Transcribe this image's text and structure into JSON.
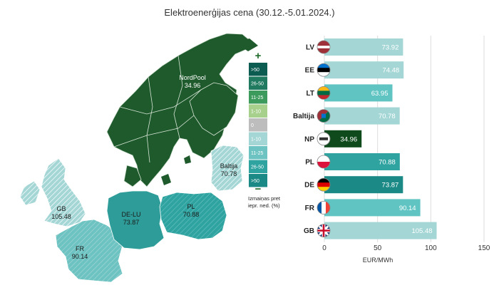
{
  "title": "Elektroenerģijas cena (30.12.-5.01.2024.)",
  "map": {
    "regions": [
      {
        "code": "NordPool",
        "label": "NordPool",
        "value": "34.96"
      },
      {
        "code": "Baltija",
        "label": "Baltija",
        "value": "70.78"
      },
      {
        "code": "GB",
        "label": "GB",
        "value": "105.48"
      },
      {
        "code": "DE-LU",
        "label": "DE-LU",
        "value": "73.87"
      },
      {
        "code": "PL",
        "label": "PL",
        "value": "70.88"
      },
      {
        "code": "FR",
        "label": "FR",
        "value": "90.14"
      }
    ],
    "legend": {
      "plus_symbol": "+",
      "minus_symbol": "−",
      "items": [
        {
          "label": ">50",
          "color": "#0d5c52"
        },
        {
          "label": "26-50",
          "color": "#1f7a5f"
        },
        {
          "label": "11-25",
          "color": "#3c9a5c"
        },
        {
          "label": "1-10",
          "color": "#a8d08d"
        },
        {
          "label": "0",
          "color": "#bdbdbd"
        },
        {
          "label": "1-10",
          "color": "#a3d6d5"
        },
        {
          "label": "11-25",
          "color": "#6cc3c1"
        },
        {
          "label": "26-50",
          "color": "#2fa3a0"
        },
        {
          "label": ">50",
          "color": "#1b8a86"
        }
      ],
      "caption_lines": [
        "Izmaiņas pret",
        "iepr. ned. (%)"
      ]
    }
  },
  "chart_data": {
    "type": "bar",
    "orientation": "horizontal",
    "title": "",
    "xlabel": "EUR/MWh",
    "xlim": [
      0,
      150
    ],
    "xticks": [
      "0",
      "50",
      "100",
      "150"
    ],
    "tick_values": [
      0,
      50,
      100,
      150
    ],
    "categories": [
      "LV",
      "EE",
      "LT",
      "Baltija",
      "NP",
      "PL",
      "DE",
      "FR",
      "GB"
    ],
    "values": [
      73.92,
      74.48,
      63.95,
      70.78,
      34.96,
      70.88,
      73.87,
      90.14,
      105.48
    ],
    "value_labels": [
      "73.92",
      "74.48",
      "63.95",
      "70.78",
      "34.96",
      "70.88",
      "73.87",
      "90.14",
      "105.48"
    ],
    "colors": [
      "#a3d6d5",
      "#a3d6d5",
      "#5fc4c2",
      "#a3d6d5",
      "#0f4a1c",
      "#2fa3a0",
      "#1b8a86",
      "#5fc4c2",
      "#a3d6d5"
    ],
    "flags": [
      "latvia-flag-icon",
      "estonia-flag-icon",
      "lithuania-flag-icon",
      "baltic-flag-icon",
      "nordpool-logo-icon",
      "poland-flag-icon",
      "germany-flag-icon",
      "france-flag-icon",
      "uk-flag-icon"
    ]
  }
}
